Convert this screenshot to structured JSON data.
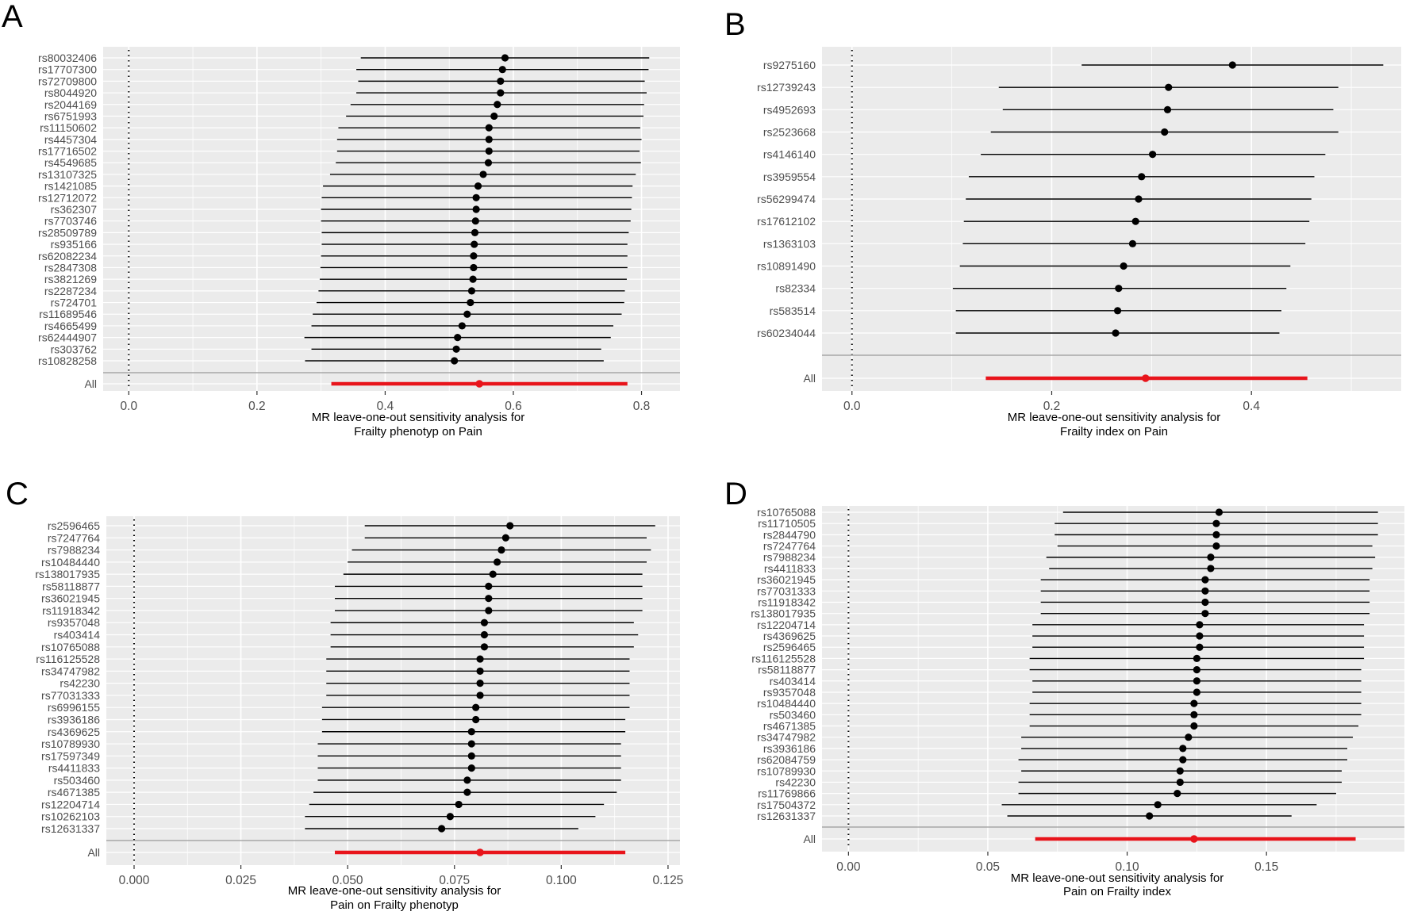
{
  "figure": {
    "panel_letters": [
      "A",
      "B",
      "C",
      "D"
    ]
  },
  "colors": {
    "panel_bg": "#ebebeb",
    "grid_major": "#ffffff",
    "point": "#000000",
    "summary": "#e8141b",
    "axis_text": "#4d4d4d",
    "separator": "#a8a8a8"
  },
  "chart_data": [
    {
      "type": "forest",
      "panel": "A",
      "xlabel_lines": [
        "MR leave-one-out sensitivity analysis for",
        "Frailty phenotyp on Pain"
      ],
      "xlim": [
        -0.04,
        0.86
      ],
      "xticks": [
        0.0,
        0.2,
        0.4,
        0.6,
        0.8
      ],
      "xtick_labels": [
        "0.0",
        "0.2",
        "0.4",
        "0.6",
        "0.8"
      ],
      "rows": [
        {
          "label": "rs80032406",
          "b": 0.587,
          "lo": 0.362,
          "hi": 0.812
        },
        {
          "label": "rs17707300",
          "b": 0.583,
          "lo": 0.355,
          "hi": 0.811
        },
        {
          "label": "rs72709800",
          "b": 0.58,
          "lo": 0.358,
          "hi": 0.805
        },
        {
          "label": "rs8044920",
          "b": 0.58,
          "lo": 0.355,
          "hi": 0.808
        },
        {
          "label": "rs2044169",
          "b": 0.575,
          "lo": 0.346,
          "hi": 0.804
        },
        {
          "label": "rs6751993",
          "b": 0.57,
          "lo": 0.339,
          "hi": 0.803
        },
        {
          "label": "rs11150602",
          "b": 0.562,
          "lo": 0.327,
          "hi": 0.798
        },
        {
          "label": "rs4457304",
          "b": 0.562,
          "lo": 0.325,
          "hi": 0.8
        },
        {
          "label": "rs17716502",
          "b": 0.562,
          "lo": 0.325,
          "hi": 0.797
        },
        {
          "label": "rs4549685",
          "b": 0.561,
          "lo": 0.323,
          "hi": 0.799
        },
        {
          "label": "rs13107325",
          "b": 0.553,
          "lo": 0.314,
          "hi": 0.791
        },
        {
          "label": "rs1421085",
          "b": 0.545,
          "lo": 0.303,
          "hi": 0.786
        },
        {
          "label": "rs12712072",
          "b": 0.542,
          "lo": 0.301,
          "hi": 0.785
        },
        {
          "label": "rs362307",
          "b": 0.542,
          "lo": 0.3,
          "hi": 0.784
        },
        {
          "label": "rs7703746",
          "b": 0.541,
          "lo": 0.3,
          "hi": 0.783
        },
        {
          "label": "rs28509789",
          "b": 0.54,
          "lo": 0.301,
          "hi": 0.78
        },
        {
          "label": "rs935166",
          "b": 0.539,
          "lo": 0.301,
          "hi": 0.778
        },
        {
          "label": "rs62082234",
          "b": 0.538,
          "lo": 0.3,
          "hi": 0.778
        },
        {
          "label": "rs2847308",
          "b": 0.538,
          "lo": 0.299,
          "hi": 0.778
        },
        {
          "label": "rs3821269",
          "b": 0.537,
          "lo": 0.298,
          "hi": 0.777
        },
        {
          "label": "rs2287234",
          "b": 0.535,
          "lo": 0.296,
          "hi": 0.774
        },
        {
          "label": "rs724701",
          "b": 0.533,
          "lo": 0.293,
          "hi": 0.773
        },
        {
          "label": "rs11689546",
          "b": 0.528,
          "lo": 0.287,
          "hi": 0.769
        },
        {
          "label": "rs4665499",
          "b": 0.52,
          "lo": 0.285,
          "hi": 0.756
        },
        {
          "label": "rs62444907",
          "b": 0.513,
          "lo": 0.274,
          "hi": 0.752
        },
        {
          "label": "rs303762",
          "b": 0.511,
          "lo": 0.285,
          "hi": 0.737
        },
        {
          "label": "rs10828258",
          "b": 0.508,
          "lo": 0.275,
          "hi": 0.741
        }
      ],
      "summary": {
        "label": "All",
        "b": 0.547,
        "lo": 0.316,
        "hi": 0.778
      }
    },
    {
      "type": "forest",
      "panel": "B",
      "xlabel_lines": [
        "MR leave-one-out sensitivity analysis for",
        "Frailty index on Pain"
      ],
      "xlim": [
        -0.03,
        0.55
      ],
      "xticks": [
        0.0,
        0.2,
        0.4
      ],
      "xtick_labels": [
        "0.0",
        "0.2",
        "0.4"
      ],
      "rows": [
        {
          "label": "rs9275160",
          "b": 0.381,
          "lo": 0.23,
          "hi": 0.532
        },
        {
          "label": "rs12739243",
          "b": 0.317,
          "lo": 0.147,
          "hi": 0.487
        },
        {
          "label": "rs4952693",
          "b": 0.316,
          "lo": 0.151,
          "hi": 0.482
        },
        {
          "label": "rs2523668",
          "b": 0.313,
          "lo": 0.139,
          "hi": 0.487
        },
        {
          "label": "rs4146140",
          "b": 0.301,
          "lo": 0.129,
          "hi": 0.474
        },
        {
          "label": "rs3959554",
          "b": 0.29,
          "lo": 0.117,
          "hi": 0.463
        },
        {
          "label": "rs56299474",
          "b": 0.287,
          "lo": 0.114,
          "hi": 0.46
        },
        {
          "label": "rs17612102",
          "b": 0.284,
          "lo": 0.112,
          "hi": 0.458
        },
        {
          "label": "rs1363103",
          "b": 0.281,
          "lo": 0.111,
          "hi": 0.454
        },
        {
          "label": "rs10891490",
          "b": 0.272,
          "lo": 0.108,
          "hi": 0.439
        },
        {
          "label": "rs82334",
          "b": 0.267,
          "lo": 0.101,
          "hi": 0.435
        },
        {
          "label": "rs583514",
          "b": 0.266,
          "lo": 0.104,
          "hi": 0.43
        },
        {
          "label": "rs60234044",
          "b": 0.264,
          "lo": 0.104,
          "hi": 0.428
        }
      ],
      "summary": {
        "label": "All",
        "b": 0.294,
        "lo": 0.134,
        "hi": 0.456
      }
    },
    {
      "type": "forest",
      "panel": "C",
      "xlabel_lines": [
        "MR leave-one-out sensitivity analysis for",
        "Pain on Frailty phenotyp"
      ],
      "xlim": [
        -0.0065,
        0.1278
      ],
      "xticks": [
        0.0,
        0.025,
        0.05,
        0.075,
        0.1,
        0.125
      ],
      "xtick_labels": [
        "0.000",
        "0.025",
        "0.050",
        "0.075",
        "0.100",
        "0.125"
      ],
      "rows": [
        {
          "label": "rs2596465",
          "b": 0.088,
          "lo": 0.054,
          "hi": 0.122
        },
        {
          "label": "rs7247764",
          "b": 0.087,
          "lo": 0.054,
          "hi": 0.12
        },
        {
          "label": "rs7988234",
          "b": 0.086,
          "lo": 0.051,
          "hi": 0.121
        },
        {
          "label": "rs10484440",
          "b": 0.085,
          "lo": 0.05,
          "hi": 0.12
        },
        {
          "label": "rs138017935",
          "b": 0.084,
          "lo": 0.049,
          "hi": 0.119
        },
        {
          "label": "rs58118877",
          "b": 0.083,
          "lo": 0.047,
          "hi": 0.119
        },
        {
          "label": "rs36021945",
          "b": 0.083,
          "lo": 0.047,
          "hi": 0.119
        },
        {
          "label": "rs11918342",
          "b": 0.083,
          "lo": 0.047,
          "hi": 0.119
        },
        {
          "label": "rs9357048",
          "b": 0.082,
          "lo": 0.046,
          "hi": 0.117
        },
        {
          "label": "rs403414",
          "b": 0.082,
          "lo": 0.046,
          "hi": 0.118
        },
        {
          "label": "rs10765088",
          "b": 0.082,
          "lo": 0.046,
          "hi": 0.117
        },
        {
          "label": "rs116125528",
          "b": 0.081,
          "lo": 0.045,
          "hi": 0.116
        },
        {
          "label": "rs34747982",
          "b": 0.081,
          "lo": 0.045,
          "hi": 0.116
        },
        {
          "label": "rs42230",
          "b": 0.081,
          "lo": 0.045,
          "hi": 0.116
        },
        {
          "label": "rs77031333",
          "b": 0.081,
          "lo": 0.045,
          "hi": 0.116
        },
        {
          "label": "rs6996155",
          "b": 0.08,
          "lo": 0.044,
          "hi": 0.116
        },
        {
          "label": "rs3936186",
          "b": 0.08,
          "lo": 0.044,
          "hi": 0.115
        },
        {
          "label": "rs4369625",
          "b": 0.079,
          "lo": 0.044,
          "hi": 0.115
        },
        {
          "label": "rs10789930",
          "b": 0.079,
          "lo": 0.043,
          "hi": 0.114
        },
        {
          "label": "rs17597349",
          "b": 0.079,
          "lo": 0.043,
          "hi": 0.114
        },
        {
          "label": "rs4411833",
          "b": 0.079,
          "lo": 0.043,
          "hi": 0.114
        },
        {
          "label": "rs503460",
          "b": 0.078,
          "lo": 0.043,
          "hi": 0.114
        },
        {
          "label": "rs4671385",
          "b": 0.078,
          "lo": 0.042,
          "hi": 0.113
        },
        {
          "label": "rs12204714",
          "b": 0.076,
          "lo": 0.041,
          "hi": 0.11
        },
        {
          "label": "rs10262103",
          "b": 0.074,
          "lo": 0.04,
          "hi": 0.108
        },
        {
          "label": "rs12631337",
          "b": 0.072,
          "lo": 0.04,
          "hi": 0.104
        }
      ],
      "summary": {
        "label": "All",
        "b": 0.081,
        "lo": 0.047,
        "hi": 0.115
      }
    },
    {
      "type": "forest",
      "panel": "D",
      "xlabel_lines": [
        "MR leave-one-out sensitivity analysis for",
        "Pain on Frailty index"
      ],
      "xlim": [
        -0.0095,
        0.1995
      ],
      "xticks": [
        0.0,
        0.05,
        0.1,
        0.15
      ],
      "xtick_labels": [
        "0.00",
        "0.05",
        "0.10",
        "0.15"
      ],
      "rows": [
        {
          "label": "rs10765088",
          "b": 0.133,
          "lo": 0.077,
          "hi": 0.19
        },
        {
          "label": "rs11710505",
          "b": 0.132,
          "lo": 0.074,
          "hi": 0.19
        },
        {
          "label": "rs2844790",
          "b": 0.132,
          "lo": 0.074,
          "hi": 0.19
        },
        {
          "label": "rs7247764",
          "b": 0.132,
          "lo": 0.075,
          "hi": 0.188
        },
        {
          "label": "rs7988234",
          "b": 0.13,
          "lo": 0.071,
          "hi": 0.189
        },
        {
          "label": "rs4411833",
          "b": 0.13,
          "lo": 0.072,
          "hi": 0.188
        },
        {
          "label": "rs36021945",
          "b": 0.128,
          "lo": 0.069,
          "hi": 0.187
        },
        {
          "label": "rs77031333",
          "b": 0.128,
          "lo": 0.069,
          "hi": 0.187
        },
        {
          "label": "rs11918342",
          "b": 0.128,
          "lo": 0.069,
          "hi": 0.187
        },
        {
          "label": "rs138017935",
          "b": 0.128,
          "lo": 0.069,
          "hi": 0.187
        },
        {
          "label": "rs12204714",
          "b": 0.126,
          "lo": 0.066,
          "hi": 0.185
        },
        {
          "label": "rs4369625",
          "b": 0.126,
          "lo": 0.066,
          "hi": 0.185
        },
        {
          "label": "rs2596465",
          "b": 0.126,
          "lo": 0.066,
          "hi": 0.185
        },
        {
          "label": "rs116125528",
          "b": 0.125,
          "lo": 0.065,
          "hi": 0.185
        },
        {
          "label": "rs58118877",
          "b": 0.125,
          "lo": 0.065,
          "hi": 0.184
        },
        {
          "label": "rs403414",
          "b": 0.125,
          "lo": 0.066,
          "hi": 0.184
        },
        {
          "label": "rs9357048",
          "b": 0.125,
          "lo": 0.066,
          "hi": 0.184
        },
        {
          "label": "rs10484440",
          "b": 0.124,
          "lo": 0.065,
          "hi": 0.184
        },
        {
          "label": "rs503460",
          "b": 0.124,
          "lo": 0.065,
          "hi": 0.184
        },
        {
          "label": "rs4671385",
          "b": 0.124,
          "lo": 0.065,
          "hi": 0.183
        },
        {
          "label": "rs34747982",
          "b": 0.122,
          "lo": 0.062,
          "hi": 0.181
        },
        {
          "label": "rs3936186",
          "b": 0.12,
          "lo": 0.062,
          "hi": 0.179
        },
        {
          "label": "rs62084759",
          "b": 0.12,
          "lo": 0.061,
          "hi": 0.179
        },
        {
          "label": "rs10789930",
          "b": 0.119,
          "lo": 0.062,
          "hi": 0.177
        },
        {
          "label": "rs42230",
          "b": 0.119,
          "lo": 0.061,
          "hi": 0.177
        },
        {
          "label": "rs11769866",
          "b": 0.118,
          "lo": 0.061,
          "hi": 0.175
        },
        {
          "label": "rs17504372",
          "b": 0.111,
          "lo": 0.055,
          "hi": 0.168
        },
        {
          "label": "rs12631337",
          "b": 0.108,
          "lo": 0.057,
          "hi": 0.159
        }
      ],
      "summary": {
        "label": "All",
        "b": 0.124,
        "lo": 0.067,
        "hi": 0.182
      }
    }
  ]
}
